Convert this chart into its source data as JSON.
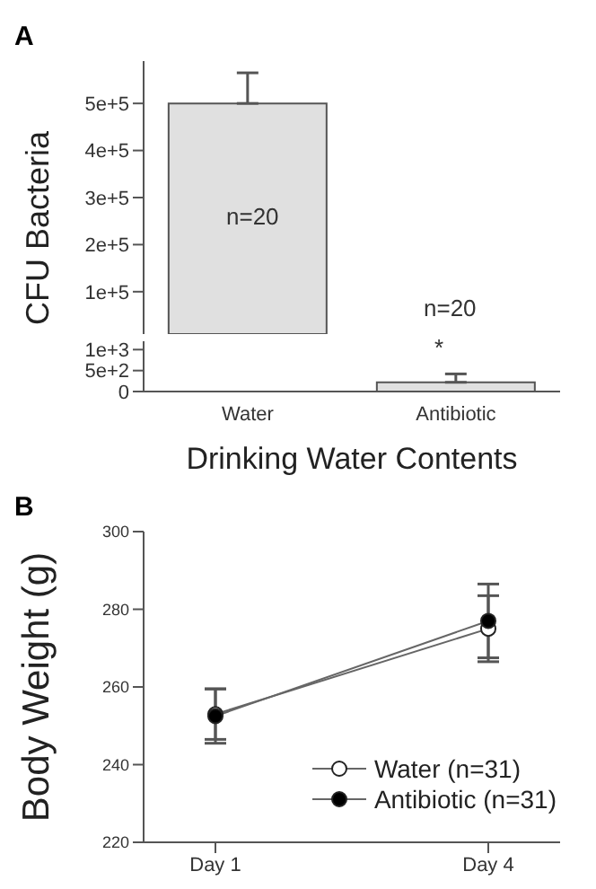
{
  "chart_data": [
    {
      "type": "bar",
      "title": "A",
      "ylabel": "CFU Bacteria",
      "categories": [
        null
      ],
      "values": [
        500000
      ],
      "errors": [
        [
          500000,
          565000
        ]
      ],
      "color": "#e0e0e0",
      "ylim": [
        10000,
        590000
      ],
      "yticks": [
        {
          "value": 100000,
          "label": "1e+5"
        },
        {
          "value": 200000,
          "label": "2e+5"
        },
        {
          "value": 300000,
          "label": "3e+5"
        },
        {
          "value": 400000,
          "label": "4e+5"
        },
        {
          "value": 500000,
          "label": "5e+5"
        }
      ],
      "tick_labels": "y",
      "grid": false,
      "legend": false,
      "annotations": [
        "n=20"
      ]
    },
    {
      "type": "bar",
      "xlabel": "Drinking Water Contents",
      "categories": [
        "Water",
        "Antibiotic"
      ],
      "values": [
        null,
        220
      ],
      "errors": [
        null,
        [
          220,
          420
        ]
      ],
      "color": "#e0e0e0",
      "ylim": [
        0,
        1200
      ],
      "yticks": [
        {
          "value": 0,
          "label": "0"
        },
        {
          "value": 500,
          "label": "5e+2"
        },
        {
          "value": 1000,
          "label": "1e+3"
        }
      ],
      "grid": false,
      "legend": false,
      "annotations": [
        "n=20",
        "*"
      ]
    },
    {
      "type": "line",
      "title": "B",
      "ylabel": "Body Weight (g)",
      "categories": [
        "Day 1",
        "Day 4"
      ],
      "ylim": [
        220,
        300
      ],
      "yticks": [
        220,
        240,
        260,
        280,
        300
      ],
      "grid": false,
      "legend": "bottom right",
      "marker": "circle",
      "line_style": "solid",
      "series": [
        {
          "name": "Water (n=31)",
          "color": "#ffffff",
          "values": [
            253,
            275
          ],
          "errors": [
            6.5,
            8.5
          ]
        },
        {
          "name": "Antibiotic (n=31)",
          "color": "#000000",
          "values": [
            252.5,
            277
          ],
          "errors": [
            7,
            9.5
          ]
        }
      ]
    }
  ]
}
